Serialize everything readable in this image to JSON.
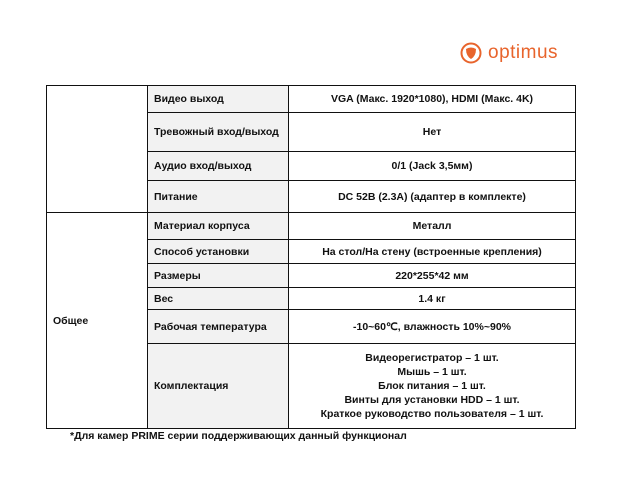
{
  "logo": {
    "text": "optimus",
    "color": "#e8642c"
  },
  "groups": [
    {
      "name": "",
      "rows": [
        {
          "label": "Видео выход",
          "value": [
            "VGA (Макс. 1920*1080), HDMI (Макс. 4K)"
          ]
        },
        {
          "label": "Тревожный вход/выход",
          "value": [
            "Нет"
          ]
        },
        {
          "label": "Аудио вход/выход",
          "value": [
            "0/1 (Jack 3,5мм)"
          ]
        },
        {
          "label": "Питание",
          "value": [
            "DC 52В (2.3А) (адаптер в комплекте)"
          ]
        }
      ]
    },
    {
      "name": "Общее",
      "rows": [
        {
          "label": "Материал корпуса",
          "value": [
            "Металл"
          ]
        },
        {
          "label": "Способ установки",
          "value": [
            "На стол/На стену (встроенные крепления)"
          ]
        },
        {
          "label": "Размеры",
          "value": [
            "220*255*42 мм"
          ]
        },
        {
          "label": "Вес",
          "value": [
            "1.4 кг"
          ]
        },
        {
          "label": "Рабочая температура",
          "value": [
            "-10~60℃, влажность 10%~90%"
          ]
        },
        {
          "label": "Комплектация",
          "value": [
            "Видеорегистратор – 1 шт.",
            "Мышь – 1 шт.",
            "Блок питания – 1 шт.",
            "Винты для установки HDD – 1 шт.",
            "Краткое руководство пользователя – 1 шт."
          ]
        }
      ]
    }
  ],
  "footnote": "*Для камер PRIME серии поддерживающих данный функционал"
}
